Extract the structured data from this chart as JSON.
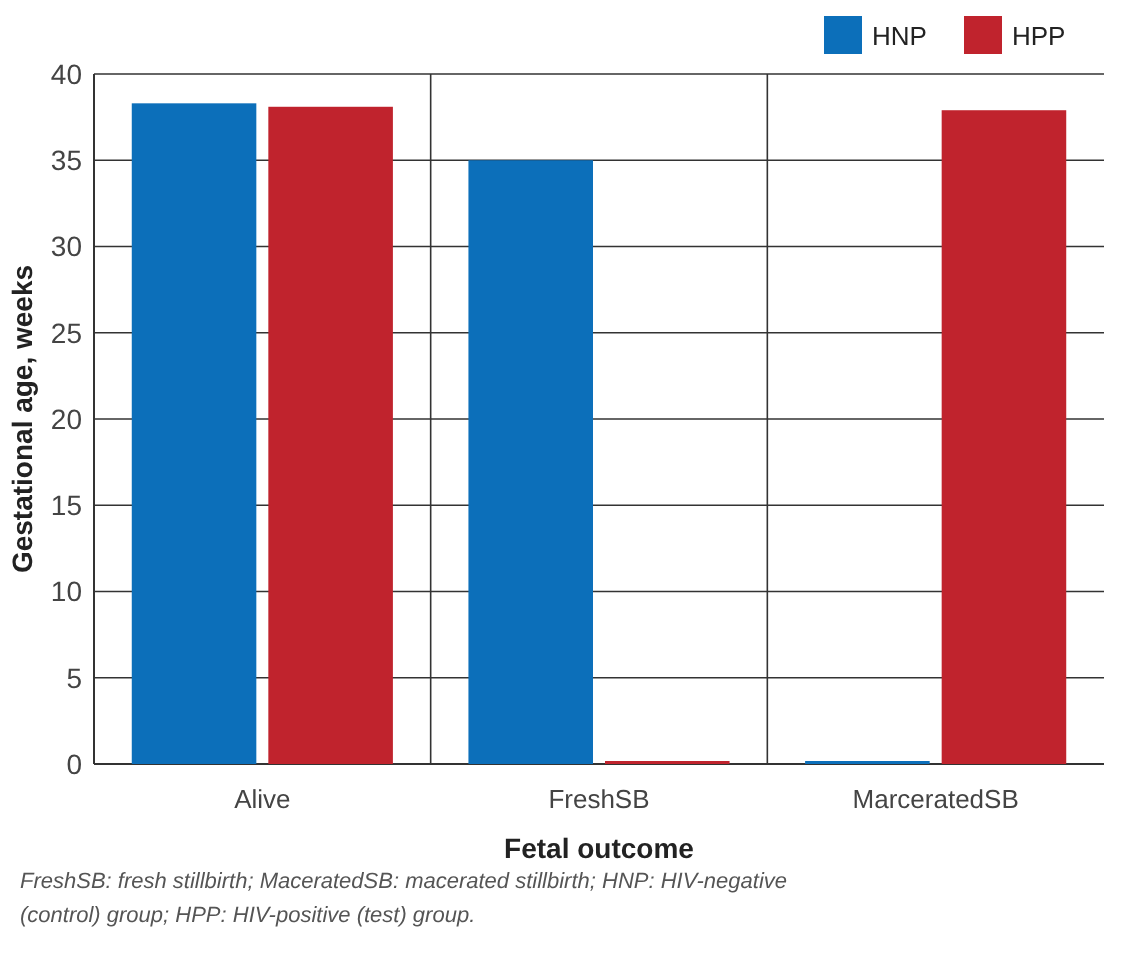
{
  "chart_data": {
    "type": "bar",
    "xlabel": "Fetal outcome",
    "ylabel": "Gestational age, weeks",
    "categories": [
      "Alive",
      "FreshSB",
      "MarceratedSB"
    ],
    "series": [
      {
        "name": "HNP",
        "color": "#0c6fba",
        "values": [
          38.3,
          35,
          0
        ]
      },
      {
        "name": "HPP",
        "color": "#c0232d",
        "values": [
          38.1,
          0,
          37.9
        ]
      }
    ],
    "ylim": [
      0,
      40
    ],
    "yticks": [
      0,
      5,
      10,
      15,
      20,
      25,
      30,
      35,
      40
    ],
    "grid": true,
    "legend": "top right",
    "annotations": [
      "FreshSB: fresh stillbirth; MaceratedSB: macerated stillbirth; HNP: HIV-negative (control) group; HPP: HIV-positive (test) group."
    ]
  }
}
